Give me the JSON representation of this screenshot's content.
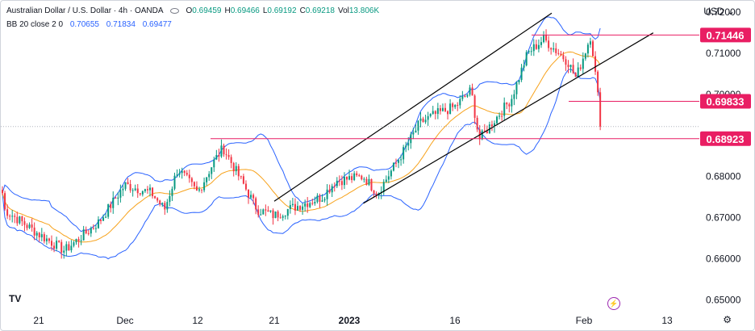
{
  "header": {
    "symbol_title": "Australian Dollar / U.S. Dollar · 4h · OANDA",
    "ohlcv": [
      {
        "key": "O",
        "value": "0.69459"
      },
      {
        "key": "H",
        "value": "0.69466"
      },
      {
        "key": "L",
        "value": "0.69192"
      },
      {
        "key": "C",
        "value": "0.69218"
      },
      {
        "key": "Vol",
        "value": "13.806K"
      }
    ],
    "indicator_label": "BB 20 close 2 0",
    "bb_values": {
      "basis": "0.70655",
      "upper": "0.71834",
      "lower": "0.69477"
    },
    "currency": "USD"
  },
  "icons": {
    "logo": "tradingview-logo-icon",
    "settings": "gear-icon",
    "event": "lightning-event-icon"
  },
  "logo_text": "TV",
  "colors": {
    "candle_up": "#089981",
    "candle_down": "#f23645",
    "bb_bands": "#2962ff",
    "bb_basis": "#f7a21b",
    "level_lines": "#e91e63",
    "trend_lines": "#000000"
  },
  "chart_data": {
    "type": "candlestick",
    "timeframe": "4h",
    "x_axis_labels": [
      "21",
      "Dec",
      "12",
      "21",
      "2023",
      "16",
      "Feb",
      "13"
    ],
    "y_axis_ticks": [
      "0.72000",
      "0.71000",
      "0.70000",
      "0.69000",
      "0.68000",
      "0.67000",
      "0.66000",
      "0.65000"
    ],
    "ylim": [
      0.6485,
      0.7228
    ],
    "horizontal_levels": [
      {
        "label": "0.71446",
        "value": 0.71446
      },
      {
        "label": "0.69833",
        "value": 0.69833
      },
      {
        "label": "0.68923",
        "value": 0.68923
      }
    ],
    "last_price": 0.69218,
    "bollinger": {
      "period": 20,
      "source": "close",
      "stddev": 2,
      "offset": 0
    },
    "close_path": [
      [
        "start",
        0.676
      ],
      [
        "Nov 17",
        0.672
      ],
      [
        "Nov 21",
        0.666
      ],
      [
        "Nov 24",
        0.662
      ],
      [
        "Nov 28",
        0.669
      ],
      [
        "Dec 1",
        0.678
      ],
      [
        "Dec 5",
        0.676
      ],
      [
        "Dec 7",
        0.672
      ],
      [
        "Dec 9",
        0.682
      ],
      [
        "Dec 12",
        0.676
      ],
      [
        "Dec 14",
        0.684
      ],
      [
        "Dec 15",
        0.687
      ],
      [
        "Dec 19",
        0.672
      ],
      [
        "Dec 21",
        0.6705
      ],
      [
        "Dec 23",
        0.672
      ],
      [
        "Dec 28",
        0.675
      ],
      [
        "Dec 30",
        0.679
      ],
      [
        "Jan 3",
        0.68
      ],
      [
        "Jan 5",
        0.676
      ],
      [
        "Jan 9",
        0.687
      ],
      [
        "Jan 11",
        0.693
      ],
      [
        "Jan 13",
        0.695
      ],
      [
        "Jan 16",
        0.697
      ],
      [
        "Jan 18",
        0.701
      ],
      [
        "Jan 19",
        0.689
      ],
      [
        "Jan 23",
        0.699
      ],
      [
        "Jan 25",
        0.71
      ],
      [
        "Jan 27",
        0.7135
      ],
      [
        "Jan 30",
        0.708
      ],
      [
        "Jan 31",
        0.704
      ],
      [
        "Feb 2",
        0.7145
      ],
      [
        "Feb 3",
        0.6995
      ],
      [
        "Feb 3 last",
        0.69218
      ]
    ],
    "trend_lines": [
      {
        "from": [
          "Dec 21",
          0.674
        ],
        "to": [
          "Jan 28",
          0.7198
        ]
      },
      {
        "from": [
          "Jan 3",
          0.6735
        ],
        "to": [
          "Feb 11",
          0.715
        ]
      }
    ]
  }
}
